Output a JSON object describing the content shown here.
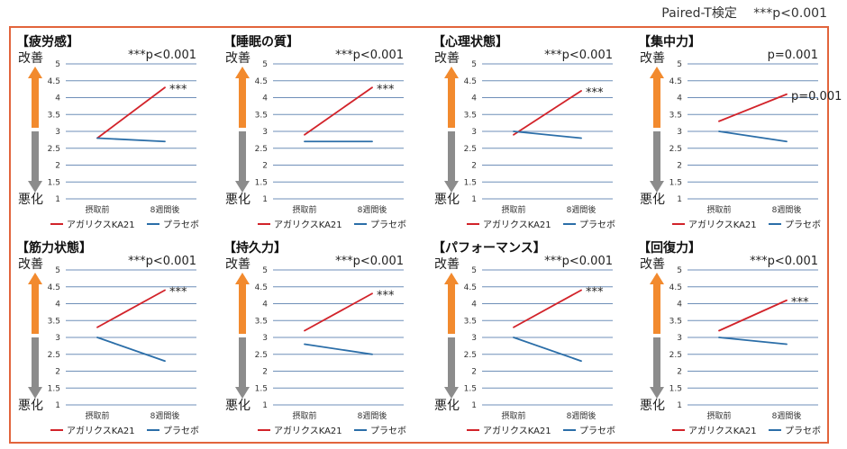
{
  "header": {
    "test_label": "Paired-T検定",
    "sig_label": "***p<0.001"
  },
  "axis": {
    "top_label": "改善",
    "bottom_label": "悪化",
    "ylim": [
      1,
      5
    ],
    "yticks": [
      "5",
      "4.5",
      "4",
      "3.5",
      "3",
      "2.5",
      "2",
      "1.5",
      "1"
    ]
  },
  "legend": {
    "series_a": "アガリクスKA21",
    "series_b": "プラセボ"
  },
  "colors": {
    "series_a": "#d2232a",
    "series_b": "#2b6ea8",
    "frame": "#e2643c",
    "arrow_up": "#f28a2e",
    "arrow_down": "#8c8c8c",
    "grid": "#6f8fb8"
  },
  "chart_data": [
    {
      "type": "line",
      "title": "【疲労感】",
      "annotation": "***p<0.001",
      "categories": [
        "摂取前",
        "8週間後"
      ],
      "series": [
        {
          "name": "アガリクスKA21",
          "values": [
            2.8,
            4.3
          ],
          "label": "***"
        },
        {
          "name": "プラセボ",
          "values": [
            2.8,
            2.7
          ]
        }
      ],
      "ylim": [
        1,
        5
      ]
    },
    {
      "type": "line",
      "title": "【睡眠の質】",
      "annotation": "***p<0.001",
      "categories": [
        "摂取前",
        "8週間後"
      ],
      "series": [
        {
          "name": "アガリクスKA21",
          "values": [
            2.9,
            4.3
          ],
          "label": "***"
        },
        {
          "name": "プラセボ",
          "values": [
            2.7,
            2.7
          ]
        }
      ],
      "ylim": [
        1,
        5
      ]
    },
    {
      "type": "line",
      "title": "【心理状態】",
      "annotation": "***p<0.001",
      "categories": [
        "摂取前",
        "8週間後"
      ],
      "series": [
        {
          "name": "アガリクスKA21",
          "values": [
            2.9,
            4.2
          ],
          "label": "***"
        },
        {
          "name": "プラセボ",
          "values": [
            3.0,
            2.8
          ]
        }
      ],
      "ylim": [
        1,
        5
      ]
    },
    {
      "type": "line",
      "title": "【集中力】",
      "annotation": "p=0.001",
      "categories": [
        "摂取前",
        "8週間後"
      ],
      "series": [
        {
          "name": "アガリクスKA21",
          "values": [
            3.3,
            4.1
          ],
          "label": "p=0.001"
        },
        {
          "name": "プラセボ",
          "values": [
            3.0,
            2.7
          ]
        }
      ],
      "ylim": [
        1,
        5
      ]
    },
    {
      "type": "line",
      "title": "【筋力状態】",
      "annotation": "***p<0.001",
      "categories": [
        "摂取前",
        "8週間後"
      ],
      "series": [
        {
          "name": "アガリクスKA21",
          "values": [
            3.3,
            4.4
          ],
          "label": "***"
        },
        {
          "name": "プラセボ",
          "values": [
            3.0,
            2.3
          ]
        }
      ],
      "ylim": [
        1,
        5
      ]
    },
    {
      "type": "line",
      "title": "【持久力】",
      "annotation": "***p<0.001",
      "categories": [
        "摂取前",
        "8週間後"
      ],
      "series": [
        {
          "name": "アガリクスKA21",
          "values": [
            3.2,
            4.3
          ],
          "label": "***"
        },
        {
          "name": "プラセボ",
          "values": [
            2.8,
            2.5
          ]
        }
      ],
      "ylim": [
        1,
        5
      ]
    },
    {
      "type": "line",
      "title": "【パフォーマンス】",
      "annotation": "***p<0.001",
      "categories": [
        "摂取前",
        "8週間後"
      ],
      "series": [
        {
          "name": "アガリクスKA21",
          "values": [
            3.3,
            4.4
          ],
          "label": "***"
        },
        {
          "name": "プラセボ",
          "values": [
            3.0,
            2.3
          ]
        }
      ],
      "ylim": [
        1,
        5
      ]
    },
    {
      "type": "line",
      "title": "【回復力】",
      "annotation": "***p<0.001",
      "categories": [
        "摂取前",
        "8週間後"
      ],
      "series": [
        {
          "name": "アガリクスKA21",
          "values": [
            3.2,
            4.1
          ],
          "label": "***"
        },
        {
          "name": "プラセボ",
          "values": [
            3.0,
            2.8
          ]
        }
      ],
      "ylim": [
        1,
        5
      ]
    }
  ]
}
